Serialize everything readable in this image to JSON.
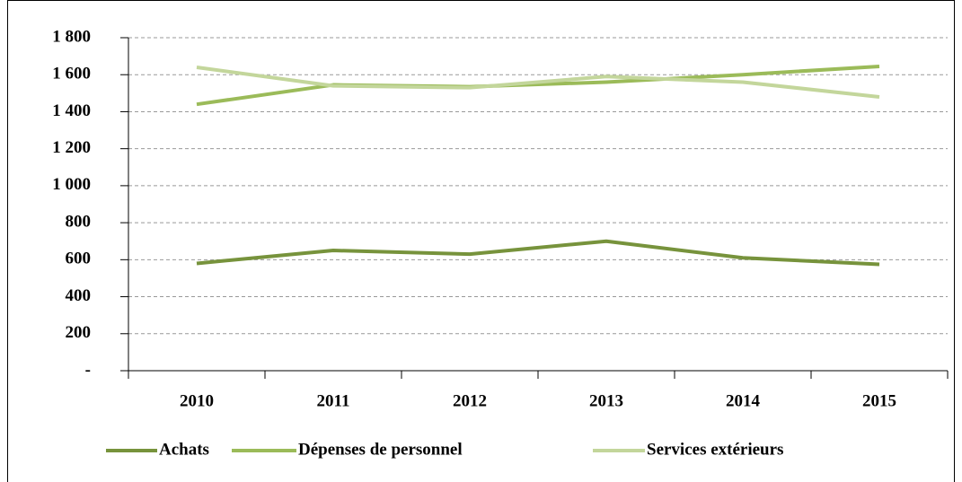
{
  "chart_data": {
    "type": "line",
    "categories": [
      "2010",
      "2011",
      "2012",
      "2013",
      "2014",
      "2015"
    ],
    "series": [
      {
        "name": "Achats",
        "color": "#77933c",
        "values": [
          580,
          650,
          630,
          700,
          610,
          575
        ]
      },
      {
        "name": "Dépenses de personnel",
        "color": "#9bbb59",
        "values": [
          1440,
          1545,
          1535,
          1560,
          1600,
          1645
        ]
      },
      {
        "name": "Services extérieurs",
        "color": "#c3d69b",
        "values": [
          1640,
          1540,
          1530,
          1590,
          1560,
          1480
        ]
      }
    ],
    "ylim": [
      0,
      1800
    ],
    "yticks": [
      {
        "value": 0,
        "label": "-"
      },
      200,
      400,
      600,
      800,
      {
        "value": 1000,
        "label": "1 000"
      },
      {
        "value": 1200,
        "label": "1 200"
      },
      {
        "value": 1400,
        "label": "1 400"
      },
      {
        "value": 1600,
        "label": "1 600"
      },
      {
        "value": 1800,
        "label": "1 800"
      }
    ],
    "grid": true,
    "legend": "bottom"
  }
}
